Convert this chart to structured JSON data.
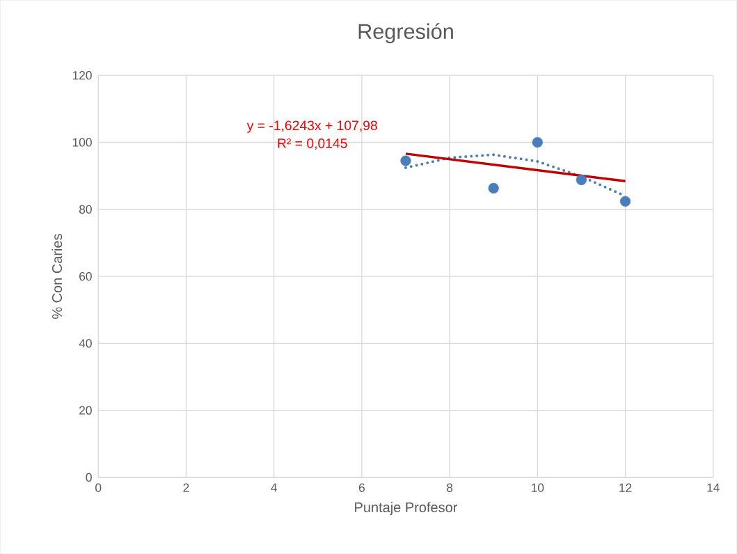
{
  "chart_data": {
    "type": "scatter",
    "title": "Regresión",
    "xlabel": "Puntaje Profesor",
    "ylabel": "% Con Caries",
    "xlim": [
      0,
      14
    ],
    "xticks": [
      0,
      2,
      4,
      6,
      8,
      10,
      12,
      14
    ],
    "ylim": [
      0,
      120
    ],
    "yticks": [
      0,
      20,
      40,
      60,
      80,
      100,
      120
    ],
    "grid": true,
    "series": [
      {
        "color": "#4a7ebb",
        "x": [
          7,
          9,
          10,
          11,
          12
        ],
        "values": [
          94.5,
          86.3,
          100,
          88.8,
          82.4
        ],
        "marker": "circle"
      },
      {
        "type": "line",
        "color": "#4a7ebb",
        "x": [
          7,
          8,
          9,
          10,
          11,
          12
        ],
        "values": [
          92.4,
          95.4,
          96.3,
          94.3,
          89.8,
          84
        ],
        "line_style": "dotted",
        "marker": "none"
      },
      {
        "type": "line",
        "color": "#c00000",
        "x": [
          7,
          12
        ],
        "values": [
          96.6,
          88.4
        ],
        "line_style": "solid",
        "marker": "none"
      }
    ],
    "annotations": [
      "y = -1,6243x + 107,98",
      "R² = 0,0145"
    ]
  }
}
